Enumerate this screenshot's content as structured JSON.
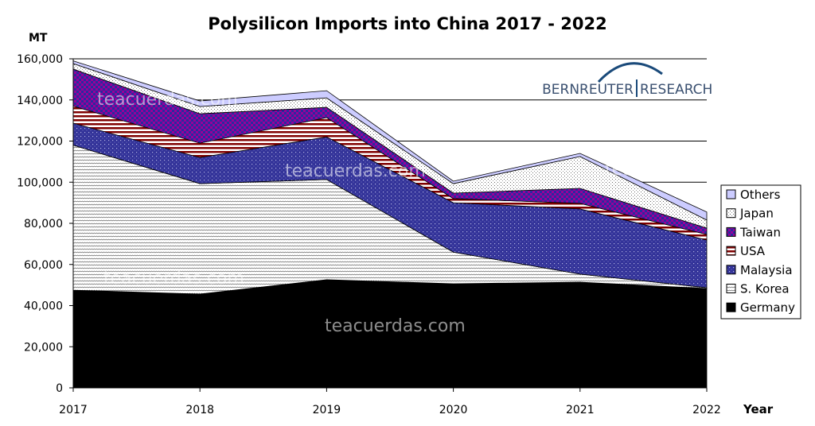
{
  "chart_data": {
    "type": "area",
    "stacked": true,
    "title": "Polysilicon Imports into China 2017 - 2022",
    "ylabel": "MT",
    "xlabel": "Year",
    "x": [
      "2017",
      "2018",
      "2019",
      "2020",
      "2021",
      "2022"
    ],
    "ylim": [
      0,
      160000
    ],
    "yticks": [
      "0",
      "20,000",
      "40,000",
      "60,000",
      "80,000",
      "100,000",
      "120,000",
      "140,000",
      "160,000"
    ],
    "grid": true,
    "legend_position": "right",
    "series": [
      {
        "name": "Germany",
        "color": "#000000",
        "pattern": "solid",
        "values": [
          47500,
          45600,
          52600,
          50600,
          51400,
          48300
        ]
      },
      {
        "name": "S. Korea",
        "color": "#808080",
        "pattern": "wave",
        "values": [
          70500,
          53700,
          48700,
          15400,
          3900,
          400
        ]
      },
      {
        "name": "Malaysia",
        "color": "#333399",
        "pattern": "dots-on-blue",
        "values": [
          10700,
          12700,
          20700,
          24000,
          31700,
          23200
        ]
      },
      {
        "name": "USA",
        "color": "#800000",
        "pattern": "horizontal-stripes",
        "values": [
          8300,
          7000,
          9400,
          2000,
          2700,
          2700
        ]
      },
      {
        "name": "Taiwan",
        "color": "#990099",
        "pattern": "checker-purple-blue",
        "values": [
          18000,
          14300,
          5000,
          2700,
          7300,
          3100
        ]
      },
      {
        "name": "Japan",
        "color": "#999999",
        "pattern": "fine-dots",
        "values": [
          2700,
          3500,
          4600,
          4600,
          15500,
          3900
        ]
      },
      {
        "name": "Others",
        "color": "#ccccff",
        "pattern": "solid",
        "values": [
          1300,
          2700,
          3500,
          1200,
          1500,
          3900
        ]
      }
    ]
  },
  "logo": {
    "left": "BERNREUTER",
    "right": "RESEARCH"
  },
  "watermarks": [
    "teacuerdas.com",
    "teacuerdas.com",
    "teacuerdas.com",
    "teacuerdas.com",
    "teacuerdas.com"
  ]
}
